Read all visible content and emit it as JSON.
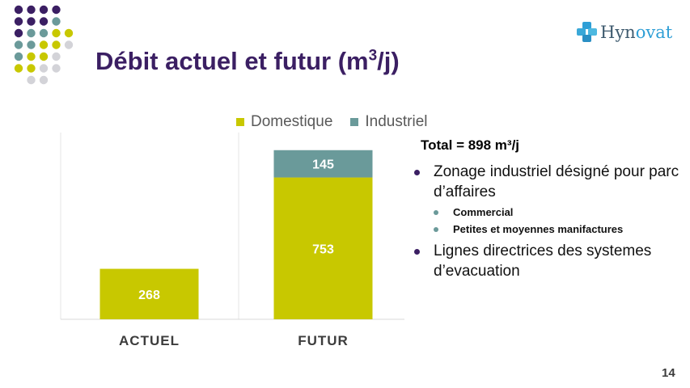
{
  "slide": {
    "title_main": "Débit actuel et futur (m",
    "title_sup": "3",
    "title_end": "/j)",
    "page_number": "14"
  },
  "logo": {
    "text_a": "Hyn",
    "text_b": "ovat"
  },
  "chart_data": {
    "type": "bar",
    "stacked": true,
    "categories": [
      "ACTUEL",
      "FUTUR"
    ],
    "series": [
      {
        "name": "Domestique",
        "values": [
          268,
          753
        ],
        "color": "#c8c800"
      },
      {
        "name": "Industriel",
        "values": [
          0,
          145
        ],
        "color": "#6a9a9a"
      }
    ],
    "data_labels": [
      [
        "268",
        "753"
      ],
      [
        "",
        "145"
      ]
    ],
    "ylim": [
      0,
      1000
    ],
    "grid": false,
    "legend_position": "top",
    "label_color": "#ffffff"
  },
  "text": {
    "total": "Total = 898 m³/j",
    "bullet1": "Zonage industriel désigné pour parc d’affaires",
    "sub1": "Commercial",
    "sub2": "Petites et moyennes manifactures",
    "bullet2": "Lignes directrices des systemes d’evacuation"
  },
  "colors": {
    "title": "#3b1f63",
    "dot_purple": "#3b1f63",
    "dot_teal": "#6b9a9a",
    "dot_yellow": "#c8c800",
    "dot_gray": "#d3d3d8"
  }
}
